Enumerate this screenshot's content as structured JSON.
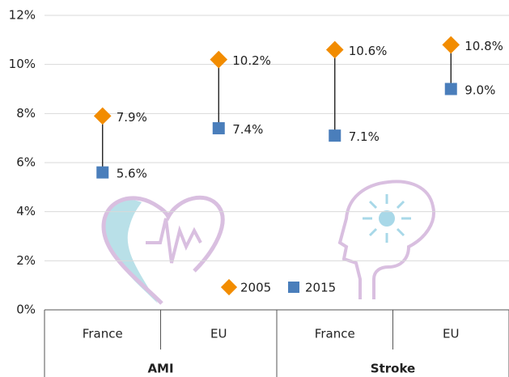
{
  "chart_data": {
    "type": "dot-range",
    "categories": [
      "France",
      "EU",
      "France",
      "EU"
    ],
    "groups": [
      "AMI",
      "Stroke"
    ],
    "series": [
      {
        "name": "2005",
        "color": "#f28c00",
        "marker": "diamond",
        "values": [
          7.9,
          10.2,
          10.6,
          10.8
        ],
        "value_labels": [
          "7.9%",
          "10.2%",
          "10.6%",
          "10.8%"
        ]
      },
      {
        "name": "2015",
        "color": "#4a7ebb",
        "marker": "square",
        "values": [
          5.6,
          7.4,
          7.1,
          9.0
        ],
        "value_labels": [
          "5.6%",
          "7.4%",
          "7.1%",
          "9.0%"
        ]
      }
    ],
    "ylim": [
      0,
      12
    ],
    "yticks": [
      {
        "value": 0,
        "label": "0%"
      },
      {
        "value": 2,
        "label": "2%"
      },
      {
        "value": 4,
        "label": "4%"
      },
      {
        "value": 6,
        "label": "6%"
      },
      {
        "value": 8,
        "label": "8%"
      },
      {
        "value": 10,
        "label": "10%"
      },
      {
        "value": 12,
        "label": "12%"
      }
    ],
    "grid": true
  }
}
